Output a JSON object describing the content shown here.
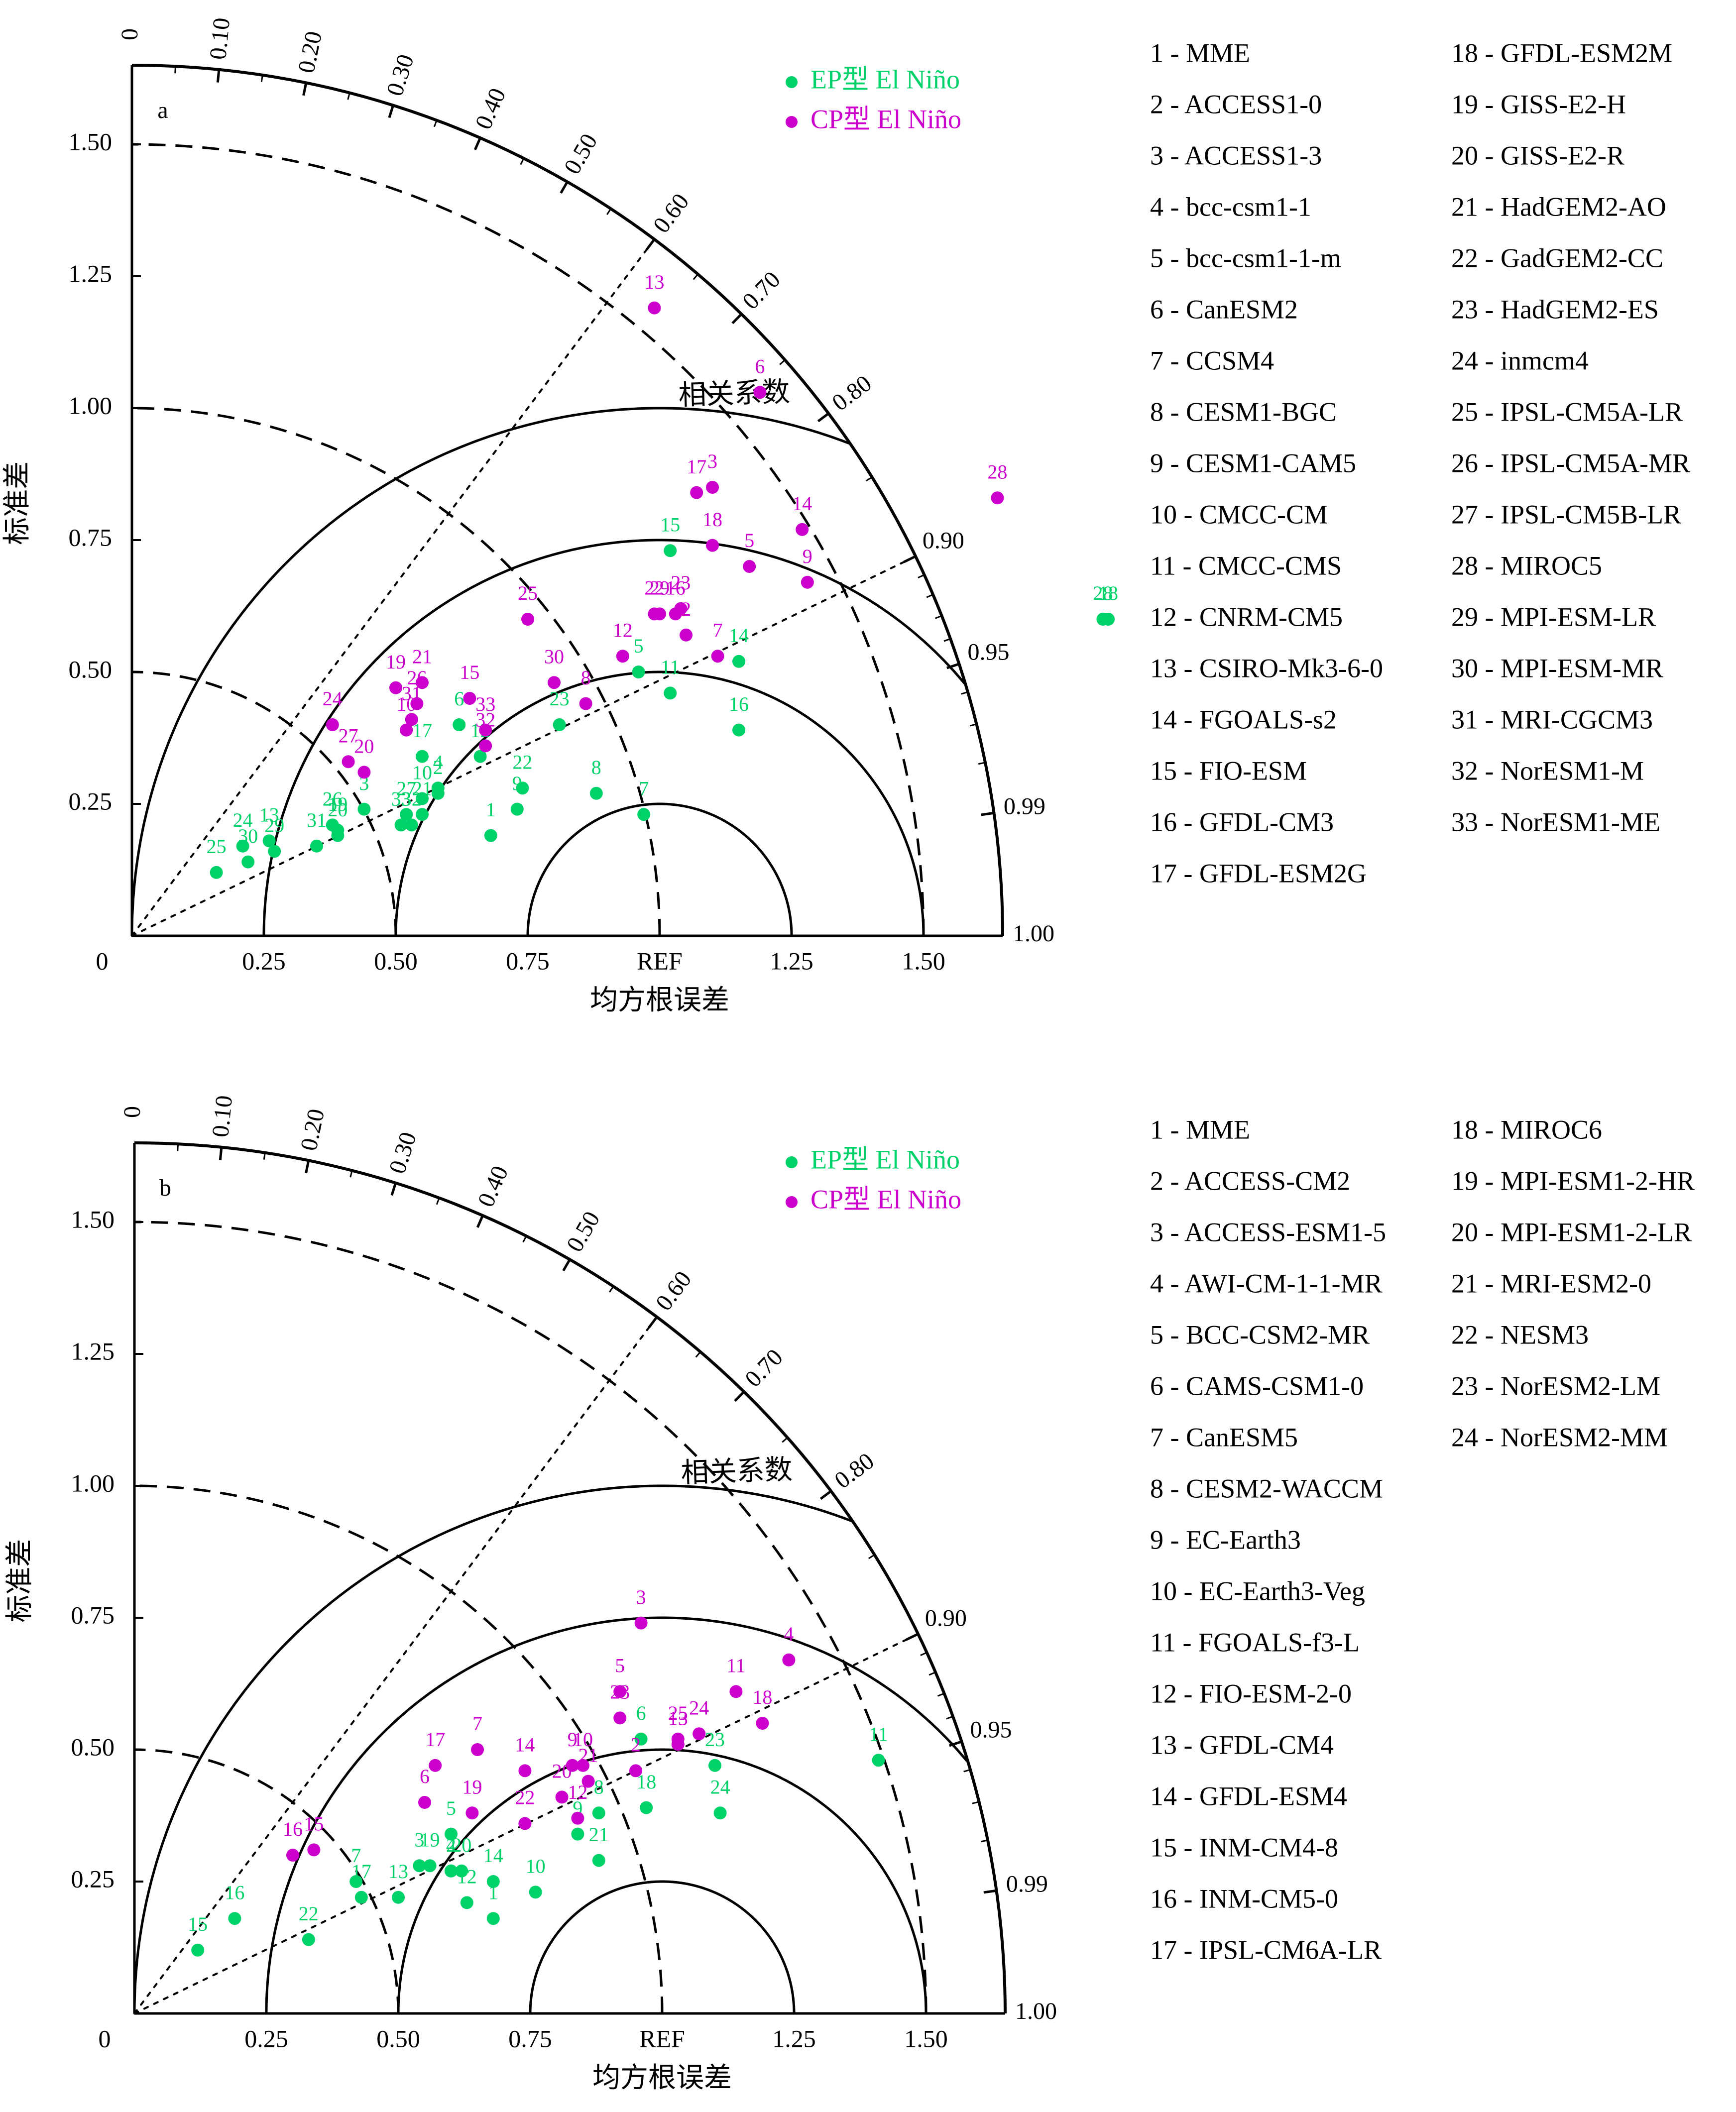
{
  "colors": {
    "ep": "#00d26a",
    "cp": "#cc00cc",
    "axis": "#000000"
  },
  "chart_data": [
    {
      "type": "scatter",
      "subtype": "taylor-diagram",
      "panel_label": "a",
      "xlabel": "均方根误差",
      "ylabel": "标准差",
      "corr_label": "相关系数",
      "ref_label": "REF",
      "origin_label": "0",
      "std_max": 1.65,
      "x_ticks": [
        "0.25",
        "0.50",
        "0.75",
        "REF",
        "1.25",
        "1.50"
      ],
      "y_ticks": [
        "0.25",
        "0.50",
        "0.75",
        "1.00",
        "1.25",
        "1.50"
      ],
      "corr_ticks": [
        "0",
        "0.10",
        "0.20",
        "0.30",
        "0.40",
        "0.50",
        "0.60",
        "0.70",
        "0.80",
        "0.90",
        "0.95",
        "0.99",
        "1.00"
      ],
      "legend": {
        "position": "top-right",
        "items": [
          {
            "name": "EP型 El Niño"
          },
          {
            "name": "CP型 El Niño"
          }
        ]
      },
      "series": [
        {
          "name": "EP型 El Niño",
          "points": [
            {
              "label": "1",
              "x": 0.68,
              "y": 0.19
            },
            {
              "label": "2",
              "x": 0.58,
              "y": 0.27
            },
            {
              "label": "3",
              "x": 0.44,
              "y": 0.24
            },
            {
              "label": "4",
              "x": 0.58,
              "y": 0.28
            },
            {
              "label": "5",
              "x": 0.96,
              "y": 0.5
            },
            {
              "label": "6",
              "x": 0.62,
              "y": 0.4
            },
            {
              "label": "7",
              "x": 0.97,
              "y": 0.23
            },
            {
              "label": "8",
              "x": 0.88,
              "y": 0.27
            },
            {
              "label": "9",
              "x": 0.73,
              "y": 0.24
            },
            {
              "label": "10",
              "x": 0.55,
              "y": 0.26
            },
            {
              "label": "11",
              "x": 1.02,
              "y": 0.46
            },
            {
              "label": "12",
              "x": 0.66,
              "y": 0.34
            },
            {
              "label": "13",
              "x": 0.26,
              "y": 0.18
            },
            {
              "label": "14",
              "x": 1.15,
              "y": 0.52
            },
            {
              "label": "15",
              "x": 1.02,
              "y": 0.73
            },
            {
              "label": "16",
              "x": 1.15,
              "y": 0.39
            },
            {
              "label": "17",
              "x": 0.55,
              "y": 0.34
            },
            {
              "label": "18",
              "x": 1.85,
              "y": 0.6
            },
            {
              "label": "19",
              "x": 0.39,
              "y": 0.2
            },
            {
              "label": "20",
              "x": 0.39,
              "y": 0.19
            },
            {
              "label": "21",
              "x": 0.55,
              "y": 0.23
            },
            {
              "label": "22",
              "x": 0.74,
              "y": 0.28
            },
            {
              "label": "23",
              "x": 0.81,
              "y": 0.4
            },
            {
              "label": "24",
              "x": 0.21,
              "y": 0.17
            },
            {
              "label": "25",
              "x": 0.16,
              "y": 0.12
            },
            {
              "label": "26",
              "x": 0.38,
              "y": 0.21
            },
            {
              "label": "27",
              "x": 0.52,
              "y": 0.23
            },
            {
              "label": "28",
              "x": 1.84,
              "y": 0.6
            },
            {
              "label": "29",
              "x": 0.27,
              "y": 0.16
            },
            {
              "label": "30",
              "x": 0.22,
              "y": 0.14
            },
            {
              "label": "31",
              "x": 0.35,
              "y": 0.17
            },
            {
              "label": "32",
              "x": 0.53,
              "y": 0.21
            },
            {
              "label": "33",
              "x": 0.51,
              "y": 0.21
            }
          ]
        },
        {
          "name": "CP型 El Niño",
          "points": [
            {
              "label": "2",
              "x": 1.05,
              "y": 0.57
            },
            {
              "label": "3",
              "x": 1.1,
              "y": 0.85
            },
            {
              "label": "5",
              "x": 1.17,
              "y": 0.7
            },
            {
              "label": "6",
              "x": 1.19,
              "y": 1.03
            },
            {
              "label": "7",
              "x": 1.11,
              "y": 0.53
            },
            {
              "label": "8",
              "x": 0.86,
              "y": 0.44
            },
            {
              "label": "9",
              "x": 1.28,
              "y": 0.67
            },
            {
              "label": "10",
              "x": 0.52,
              "y": 0.39
            },
            {
              "label": "12",
              "x": 0.93,
              "y": 0.53
            },
            {
              "label": "13",
              "x": 0.99,
              "y": 1.19
            },
            {
              "label": "14",
              "x": 1.27,
              "y": 0.77
            },
            {
              "label": "15",
              "x": 0.64,
              "y": 0.45
            },
            {
              "label": "16",
              "x": 1.03,
              "y": 0.61
            },
            {
              "label": "17",
              "x": 1.07,
              "y": 0.84
            },
            {
              "label": "18",
              "x": 1.1,
              "y": 0.74
            },
            {
              "label": "19",
              "x": 0.5,
              "y": 0.47
            },
            {
              "label": "20",
              "x": 0.44,
              "y": 0.31
            },
            {
              "label": "21",
              "x": 0.55,
              "y": 0.48
            },
            {
              "label": "22",
              "x": 0.99,
              "y": 0.61
            },
            {
              "label": "23",
              "x": 1.04,
              "y": 0.62
            },
            {
              "label": "24",
              "x": 0.38,
              "y": 0.4
            },
            {
              "label": "25",
              "x": 0.75,
              "y": 0.6
            },
            {
              "label": "26",
              "x": 0.54,
              "y": 0.44
            },
            {
              "label": "27",
              "x": 0.41,
              "y": 0.33
            },
            {
              "label": "28",
              "x": 1.64,
              "y": 0.83
            },
            {
              "label": "29",
              "x": 1.0,
              "y": 0.61
            },
            {
              "label": "30",
              "x": 0.8,
              "y": 0.48
            },
            {
              "label": "31",
              "x": 0.53,
              "y": 0.41
            },
            {
              "label": "32",
              "x": 0.67,
              "y": 0.36
            },
            {
              "label": "33",
              "x": 0.67,
              "y": 0.39
            }
          ]
        }
      ],
      "models": [
        "1 - MME",
        "2 - ACCESS1-0",
        "3 - ACCESS1-3",
        "4 - bcc-csm1-1",
        "5 - bcc-csm1-1-m",
        "6 - CanESM2",
        "7 - CCSM4",
        "8 - CESM1-BGC",
        "9 - CESM1-CAM5",
        "10 - CMCC-CM",
        "11 - CMCC-CMS",
        "12 - CNRM-CM5",
        "13 - CSIRO-Mk3-6-0",
        "14 - FGOALS-s2",
        "15 - FIO-ESM",
        "16 - GFDL-CM3",
        "17 - GFDL-ESM2G",
        "18 - GFDL-ESM2M",
        "19 - GISS-E2-H",
        "20 - GISS-E2-R",
        "21 - HadGEM2-AO",
        "22 - GadGEM2-CC",
        "23 - HadGEM2-ES",
        "24 - inmcm4",
        "25 - IPSL-CM5A-LR",
        "26 - IPSL-CM5A-MR",
        "27 - IPSL-CM5B-LR",
        "28 - MIROC5",
        "29 - MPI-ESM-LR",
        "30 - MPI-ESM-MR",
        "31 - MRI-CGCM3",
        "32 - NorESM1-M",
        "33 - NorESM1-ME"
      ]
    },
    {
      "type": "scatter",
      "subtype": "taylor-diagram",
      "panel_label": "b",
      "xlabel": "均方根误差",
      "ylabel": "标准差",
      "corr_label": "相关系数",
      "ref_label": "REF",
      "origin_label": "0",
      "std_max": 1.65,
      "x_ticks": [
        "0.25",
        "0.50",
        "0.75",
        "REF",
        "1.25",
        "1.50"
      ],
      "y_ticks": [
        "0.25",
        "0.50",
        "0.75",
        "1.00",
        "1.25",
        "1.50"
      ],
      "corr_ticks": [
        "0",
        "0.10",
        "0.20",
        "0.30",
        "0.40",
        "0.50",
        "0.60",
        "0.70",
        "0.80",
        "0.90",
        "0.95",
        "0.99",
        "1.00"
      ],
      "legend": {
        "position": "top-right",
        "items": [
          {
            "name": "EP型 El Niño"
          },
          {
            "name": "CP型 El Niño"
          }
        ]
      },
      "series": [
        {
          "name": "EP型 El Niño",
          "points": [
            {
              "label": "1",
              "x": 0.68,
              "y": 0.18
            },
            {
              "label": "2",
              "x": 0.6,
              "y": 0.27
            },
            {
              "label": "3",
              "x": 0.54,
              "y": 0.28
            },
            {
              "label": "4",
              "x": 0.6,
              "y": 0.27
            },
            {
              "label": "5",
              "x": 0.6,
              "y": 0.34
            },
            {
              "label": "6",
              "x": 0.96,
              "y": 0.52
            },
            {
              "label": "7",
              "x": 0.42,
              "y": 0.25
            },
            {
              "label": "8",
              "x": 0.88,
              "y": 0.38
            },
            {
              "label": "9",
              "x": 0.84,
              "y": 0.34
            },
            {
              "label": "10",
              "x": 0.76,
              "y": 0.23
            },
            {
              "label": "11",
              "x": 1.41,
              "y": 0.48
            },
            {
              "label": "12",
              "x": 0.63,
              "y": 0.21
            },
            {
              "label": "13",
              "x": 0.5,
              "y": 0.22
            },
            {
              "label": "14",
              "x": 0.68,
              "y": 0.25
            },
            {
              "label": "15",
              "x": 0.12,
              "y": 0.12
            },
            {
              "label": "16",
              "x": 0.19,
              "y": 0.18
            },
            {
              "label": "17",
              "x": 0.43,
              "y": 0.22
            },
            {
              "label": "18",
              "x": 0.97,
              "y": 0.39
            },
            {
              "label": "19",
              "x": 0.56,
              "y": 0.28
            },
            {
              "label": "20",
              "x": 0.62,
              "y": 0.27
            },
            {
              "label": "21",
              "x": 0.88,
              "y": 0.29
            },
            {
              "label": "22",
              "x": 0.33,
              "y": 0.14
            },
            {
              "label": "23",
              "x": 1.1,
              "y": 0.47
            },
            {
              "label": "24",
              "x": 1.11,
              "y": 0.38
            }
          ]
        },
        {
          "name": "CP型 El Niño",
          "points": [
            {
              "label": "2",
              "x": 0.95,
              "y": 0.46
            },
            {
              "label": "3",
              "x": 0.96,
              "y": 0.74
            },
            {
              "label": "4",
              "x": 1.24,
              "y": 0.67
            },
            {
              "label": "5",
              "x": 0.92,
              "y": 0.61
            },
            {
              "label": "6",
              "x": 0.55,
              "y": 0.4
            },
            {
              "label": "7",
              "x": 0.65,
              "y": 0.5
            },
            {
              "label": "9",
              "x": 0.83,
              "y": 0.47
            },
            {
              "label": "10",
              "x": 0.85,
              "y": 0.47
            },
            {
              "label": "11",
              "x": 1.14,
              "y": 0.61
            },
            {
              "label": "12",
              "x": 0.84,
              "y": 0.37
            },
            {
              "label": "13",
              "x": 1.03,
              "y": 0.51
            },
            {
              "label": "14",
              "x": 0.74,
              "y": 0.46
            },
            {
              "label": "15",
              "x": 0.34,
              "y": 0.31
            },
            {
              "label": "16",
              "x": 0.3,
              "y": 0.3
            },
            {
              "label": "17",
              "x": 0.57,
              "y": 0.47
            },
            {
              "label": "18",
              "x": 1.19,
              "y": 0.55
            },
            {
              "label": "19",
              "x": 0.64,
              "y": 0.38
            },
            {
              "label": "20",
              "x": 0.81,
              "y": 0.41
            },
            {
              "label": "21",
              "x": 0.86,
              "y": 0.44
            },
            {
              "label": "22",
              "x": 0.74,
              "y": 0.36
            },
            {
              "label": "23",
              "x": 0.92,
              "y": 0.56
            },
            {
              "label": "24",
              "x": 1.07,
              "y": 0.53
            },
            {
              "label": "25",
              "x": 1.03,
              "y": 0.52
            }
          ]
        }
      ],
      "models": [
        "1 - MME",
        "2 - ACCESS-CM2",
        "3 - ACCESS-ESM1-5",
        "4 - AWI-CM-1-1-MR",
        "5 - BCC-CSM2-MR",
        "6 - CAMS-CSM1-0",
        "7 - CanESM5",
        "8 - CESM2-WACCM",
        "9 - EC-Earth3",
        "10 - EC-Earth3-Veg",
        "11 - FGOALS-f3-L",
        "12 - FIO-ESM-2-0",
        "13 - GFDL-CM4",
        "14 - GFDL-ESM4",
        "15 - INM-CM4-8",
        "16 - INM-CM5-0",
        "17 - IPSL-CM6A-LR",
        "18 - MIROC6",
        "19 - MPI-ESM1-2-HR",
        "20 - MPI-ESM1-2-LR",
        "21 - MRI-ESM2-0",
        "22 - NESM3",
        "23 - NorESM2-LM",
        "24 - NorESM2-MM"
      ]
    }
  ]
}
